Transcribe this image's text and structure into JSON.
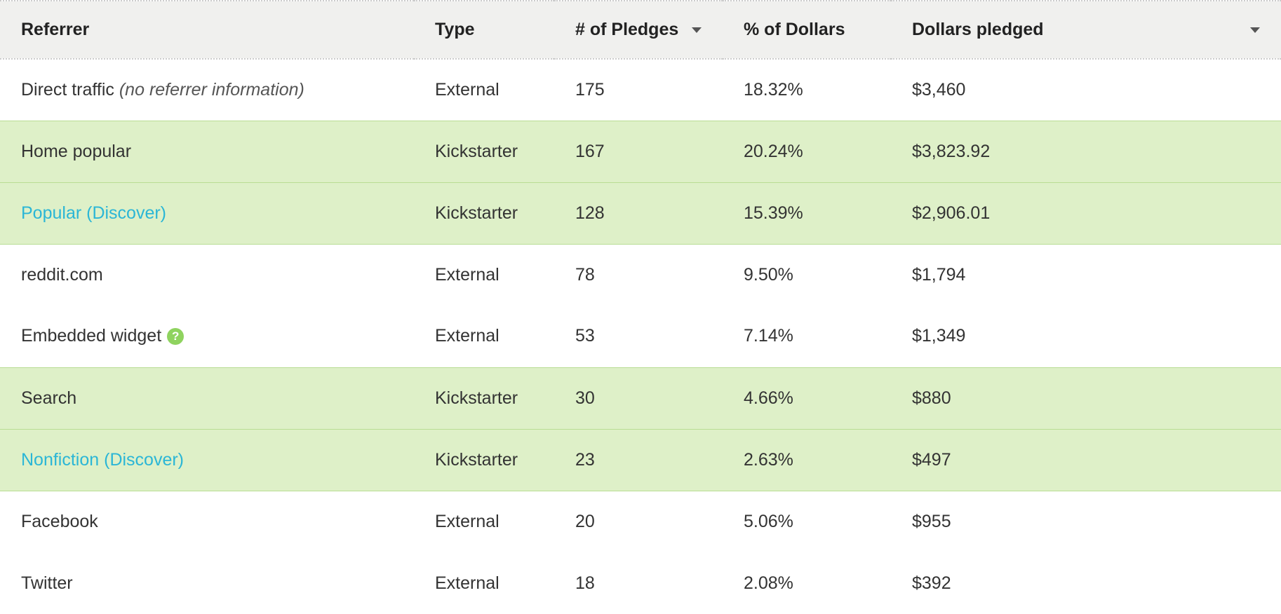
{
  "table": {
    "columns": [
      {
        "key": "referrer",
        "label": "Referrer",
        "sortable": false
      },
      {
        "key": "type",
        "label": "Type",
        "sortable": false
      },
      {
        "key": "pledges",
        "label": "# of Pledges",
        "sortable": true
      },
      {
        "key": "percent",
        "label": "% of Dollars",
        "sortable": false
      },
      {
        "key": "dollars",
        "label": "Dollars pledged",
        "sortable": true
      }
    ],
    "rows": [
      {
        "referrer": "Direct traffic",
        "referrer_note": "(no referrer information)",
        "type": "External",
        "pledges": "175",
        "percent": "18.32%",
        "dollars": "$3,460",
        "row_type": "external",
        "is_link": false,
        "has_help": false
      },
      {
        "referrer": "Home popular",
        "type": "Kickstarter",
        "pledges": "167",
        "percent": "20.24%",
        "dollars": "$3,823.92",
        "row_type": "kickstarter",
        "is_link": false,
        "has_help": false
      },
      {
        "referrer": "Popular (Discover)",
        "type": "Kickstarter",
        "pledges": "128",
        "percent": "15.39%",
        "dollars": "$2,906.01",
        "row_type": "kickstarter",
        "is_link": true,
        "has_help": false
      },
      {
        "referrer": "reddit.com",
        "type": "External",
        "pledges": "78",
        "percent": "9.50%",
        "dollars": "$1,794",
        "row_type": "external",
        "is_link": false,
        "has_help": false
      },
      {
        "referrer": "Embedded widget",
        "type": "External",
        "pledges": "53",
        "percent": "7.14%",
        "dollars": "$1,349",
        "row_type": "external",
        "is_link": false,
        "has_help": true
      },
      {
        "referrer": "Search",
        "type": "Kickstarter",
        "pledges": "30",
        "percent": "4.66%",
        "dollars": "$880",
        "row_type": "kickstarter",
        "is_link": false,
        "has_help": false
      },
      {
        "referrer": "Nonfiction (Discover)",
        "type": "Kickstarter",
        "pledges": "23",
        "percent": "2.63%",
        "dollars": "$497",
        "row_type": "kickstarter",
        "is_link": true,
        "has_help": false
      },
      {
        "referrer": "Facebook",
        "type": "External",
        "pledges": "20",
        "percent": "5.06%",
        "dollars": "$955",
        "row_type": "external",
        "is_link": false,
        "has_help": false
      },
      {
        "referrer": "Twitter",
        "type": "External",
        "pledges": "18",
        "percent": "2.08%",
        "dollars": "$392",
        "row_type": "external",
        "is_link": false,
        "has_help": false
      }
    ],
    "colors": {
      "header_bg": "#f0f0ee",
      "header_border": "#cccccc",
      "kickstarter_row_bg": "#def0c8",
      "kickstarter_row_border": "#b9dd94",
      "link_color": "#2bb6d6",
      "help_badge_bg": "#8fd35f",
      "text_color": "#333333",
      "sort_icon_color": "#555555"
    },
    "help_badge_glyph": "?"
  }
}
